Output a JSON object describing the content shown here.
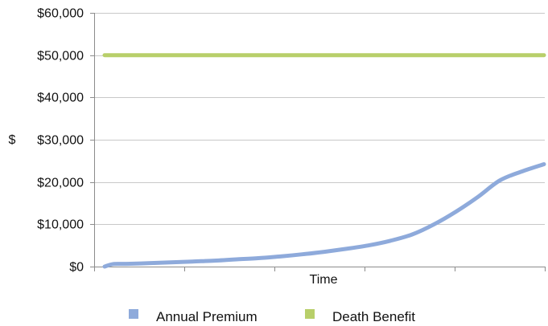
{
  "chart_data": {
    "type": "line",
    "title": "",
    "xlabel": "Time",
    "ylabel": "$",
    "ylim": [
      0,
      60000
    ],
    "yticks": [
      0,
      10000,
      20000,
      30000,
      40000,
      50000,
      60000
    ],
    "ytick_labels": [
      "$0",
      "$10,000",
      "$20,000",
      "$30,000",
      "$40,000",
      "$50,000",
      "$60,000"
    ],
    "xlim": [
      0,
      100
    ],
    "grid": "horizontal",
    "legend_position": "bottom",
    "series": [
      {
        "name": "Annual Premium",
        "color": "#8eaadb",
        "x": [
          0,
          2,
          5,
          10,
          15,
          20,
          25,
          30,
          35,
          40,
          45,
          50,
          55,
          60,
          65,
          70,
          75,
          80,
          85,
          90,
          95,
          100
        ],
        "y": [
          0,
          600,
          650,
          800,
          1000,
          1200,
          1400,
          1700,
          2000,
          2400,
          2900,
          3500,
          4200,
          5000,
          6100,
          7600,
          10000,
          13000,
          16500,
          20400,
          22500,
          24200
        ]
      },
      {
        "name": "Death Benefit",
        "color": "#b8cf6a",
        "x": [
          0,
          100
        ],
        "y": [
          50000,
          50000
        ]
      }
    ]
  }
}
